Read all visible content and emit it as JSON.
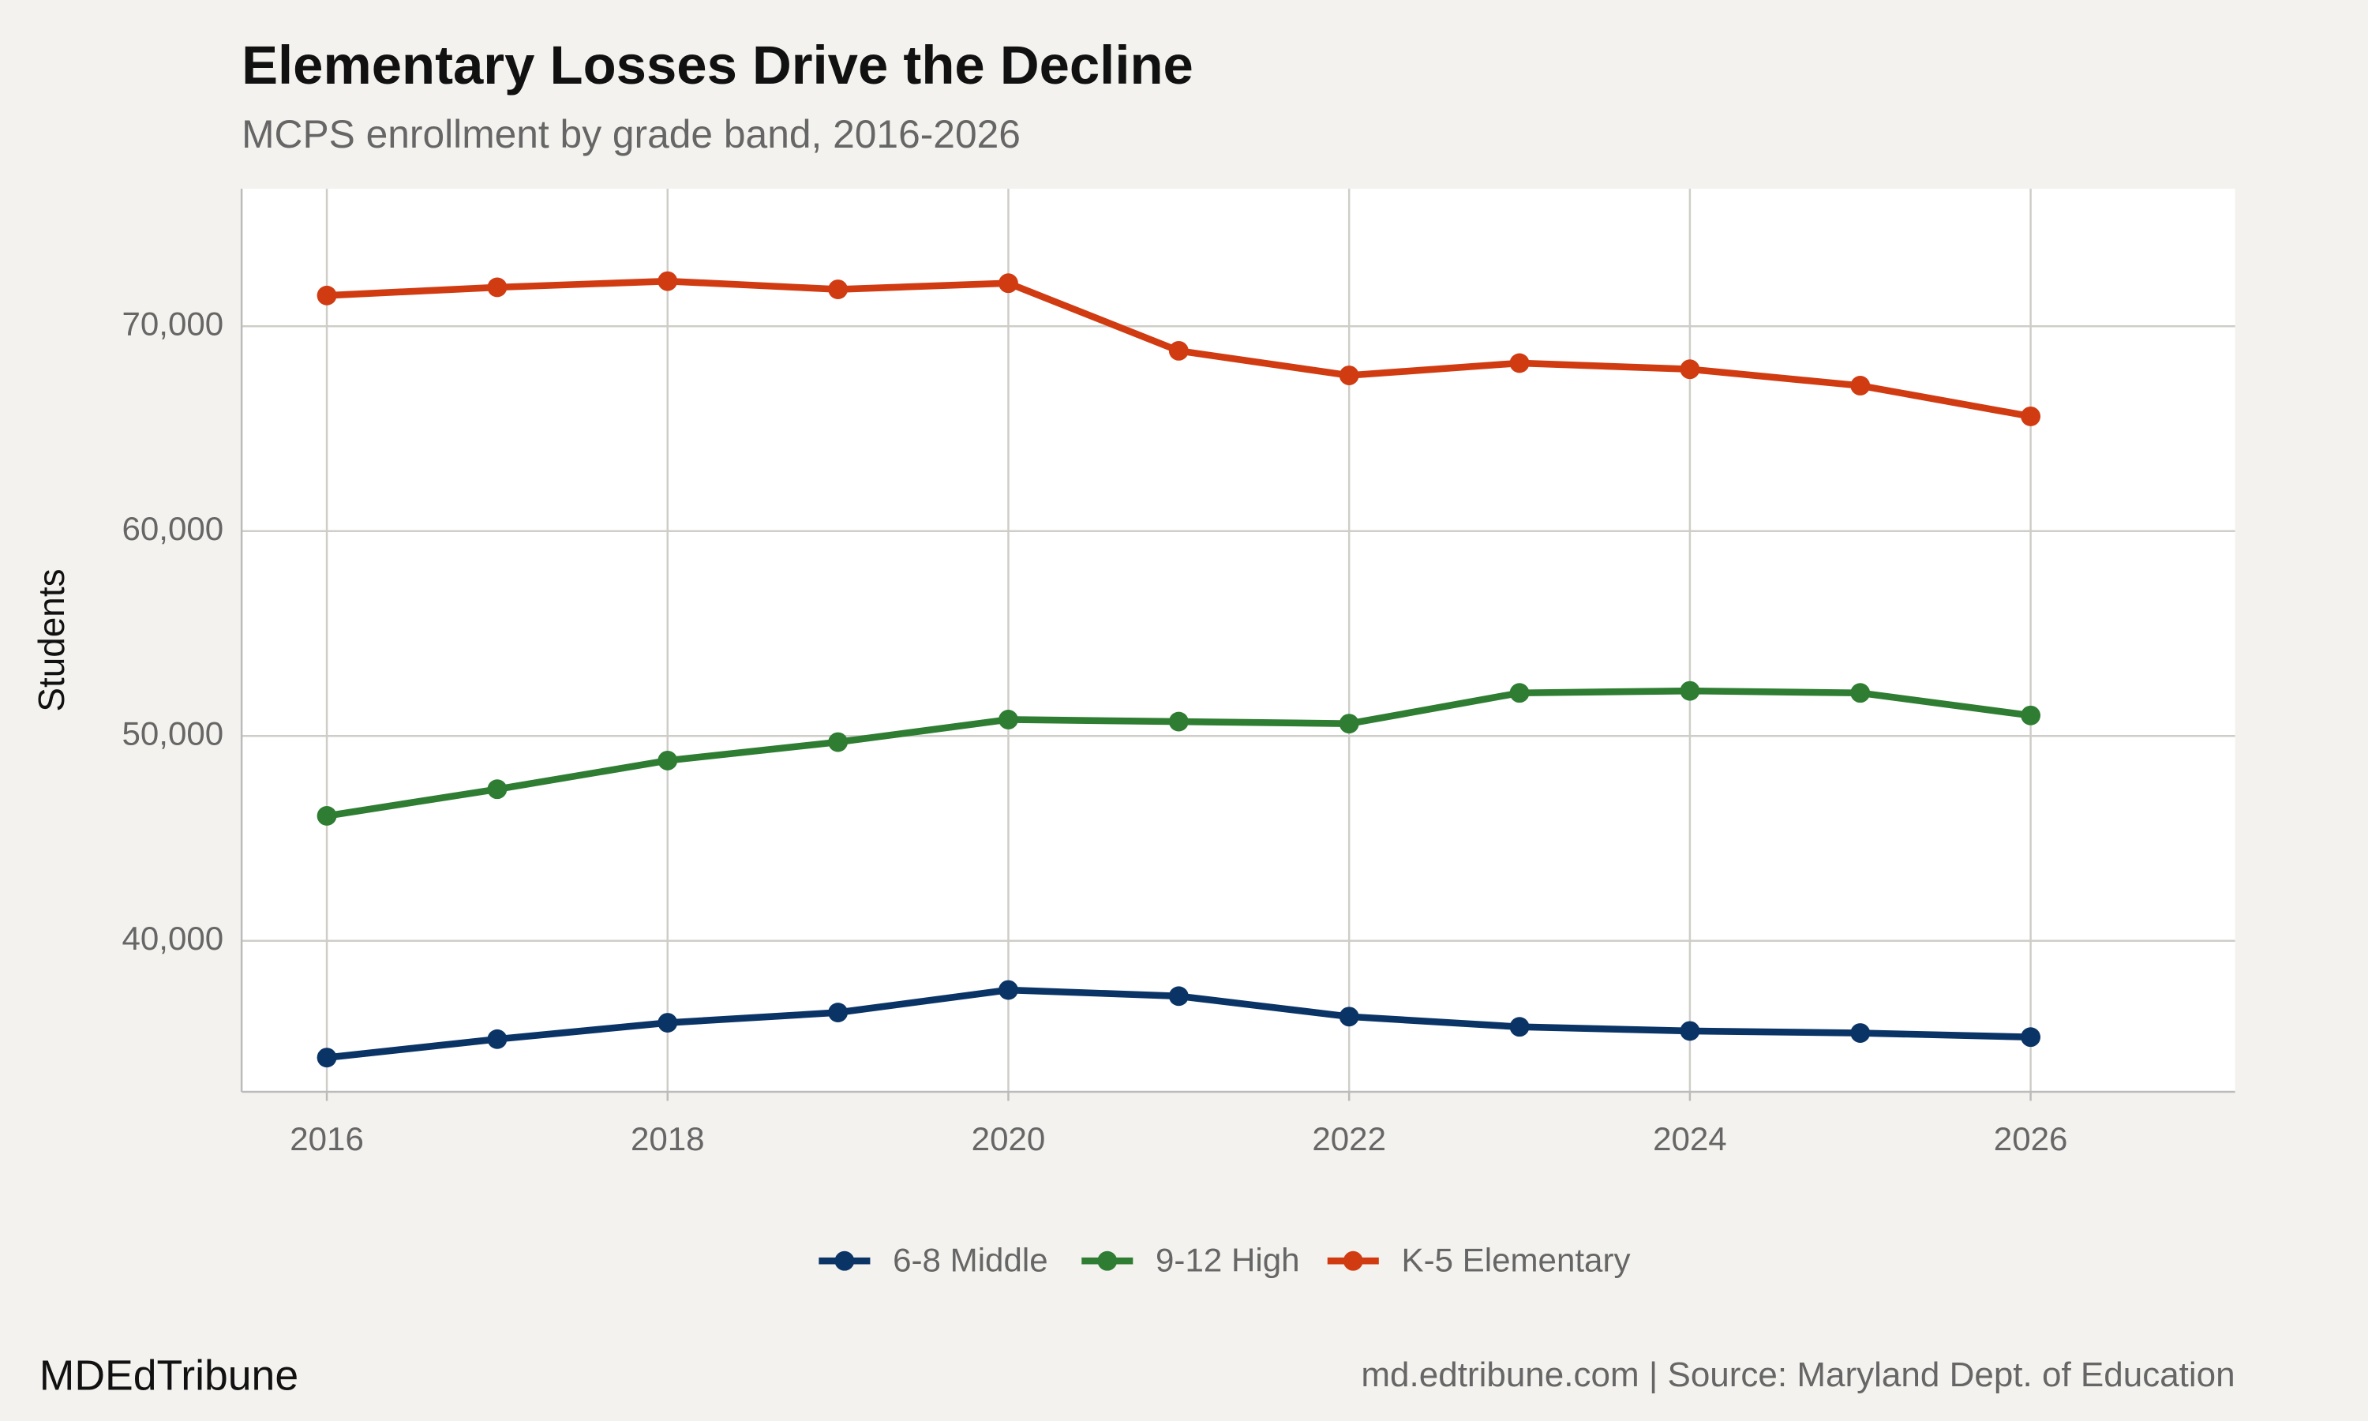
{
  "chart_data": {
    "type": "line",
    "title": "Elementary Losses Drive the Decline",
    "subtitle": "MCPS enrollment by grade band, 2016-2026",
    "y_label": "Students",
    "x": [
      2016,
      2017,
      2018,
      2019,
      2020,
      2021,
      2022,
      2023,
      2024,
      2025,
      2026
    ],
    "series": [
      {
        "name": "6-8 Middle",
        "color": "#0b3466",
        "values": [
          34300,
          35200,
          36000,
          36500,
          37600,
          37300,
          36300,
          35800,
          35600,
          35500,
          35300
        ]
      },
      {
        "name": "9-12 High",
        "color": "#2e7d32",
        "values": [
          46100,
          47400,
          48800,
          49700,
          50800,
          50700,
          50600,
          52100,
          52200,
          52100,
          51000
        ]
      },
      {
        "name": "K-5 Elementary",
        "color": "#d13b12",
        "values": [
          71500,
          71900,
          72200,
          71800,
          72100,
          68800,
          67600,
          68200,
          67900,
          67100,
          65600
        ]
      }
    ],
    "xlim": [
      2015.5,
      2027.2
    ],
    "xticks": [
      2016,
      2018,
      2020,
      2022,
      2024,
      2026
    ],
    "ylim": [
      32630,
      76710
    ],
    "yticks": [
      {
        "value": 40000,
        "label": "40,000"
      },
      {
        "value": 50000,
        "label": "50,000"
      },
      {
        "value": 60000,
        "label": "60,000"
      },
      {
        "value": 70000,
        "label": "70,000"
      }
    ],
    "grid": true,
    "legend": "bottom",
    "brand": "MDEdTribune",
    "caption": "md.edtribune.com | Source: Maryland Dept. of Education"
  }
}
